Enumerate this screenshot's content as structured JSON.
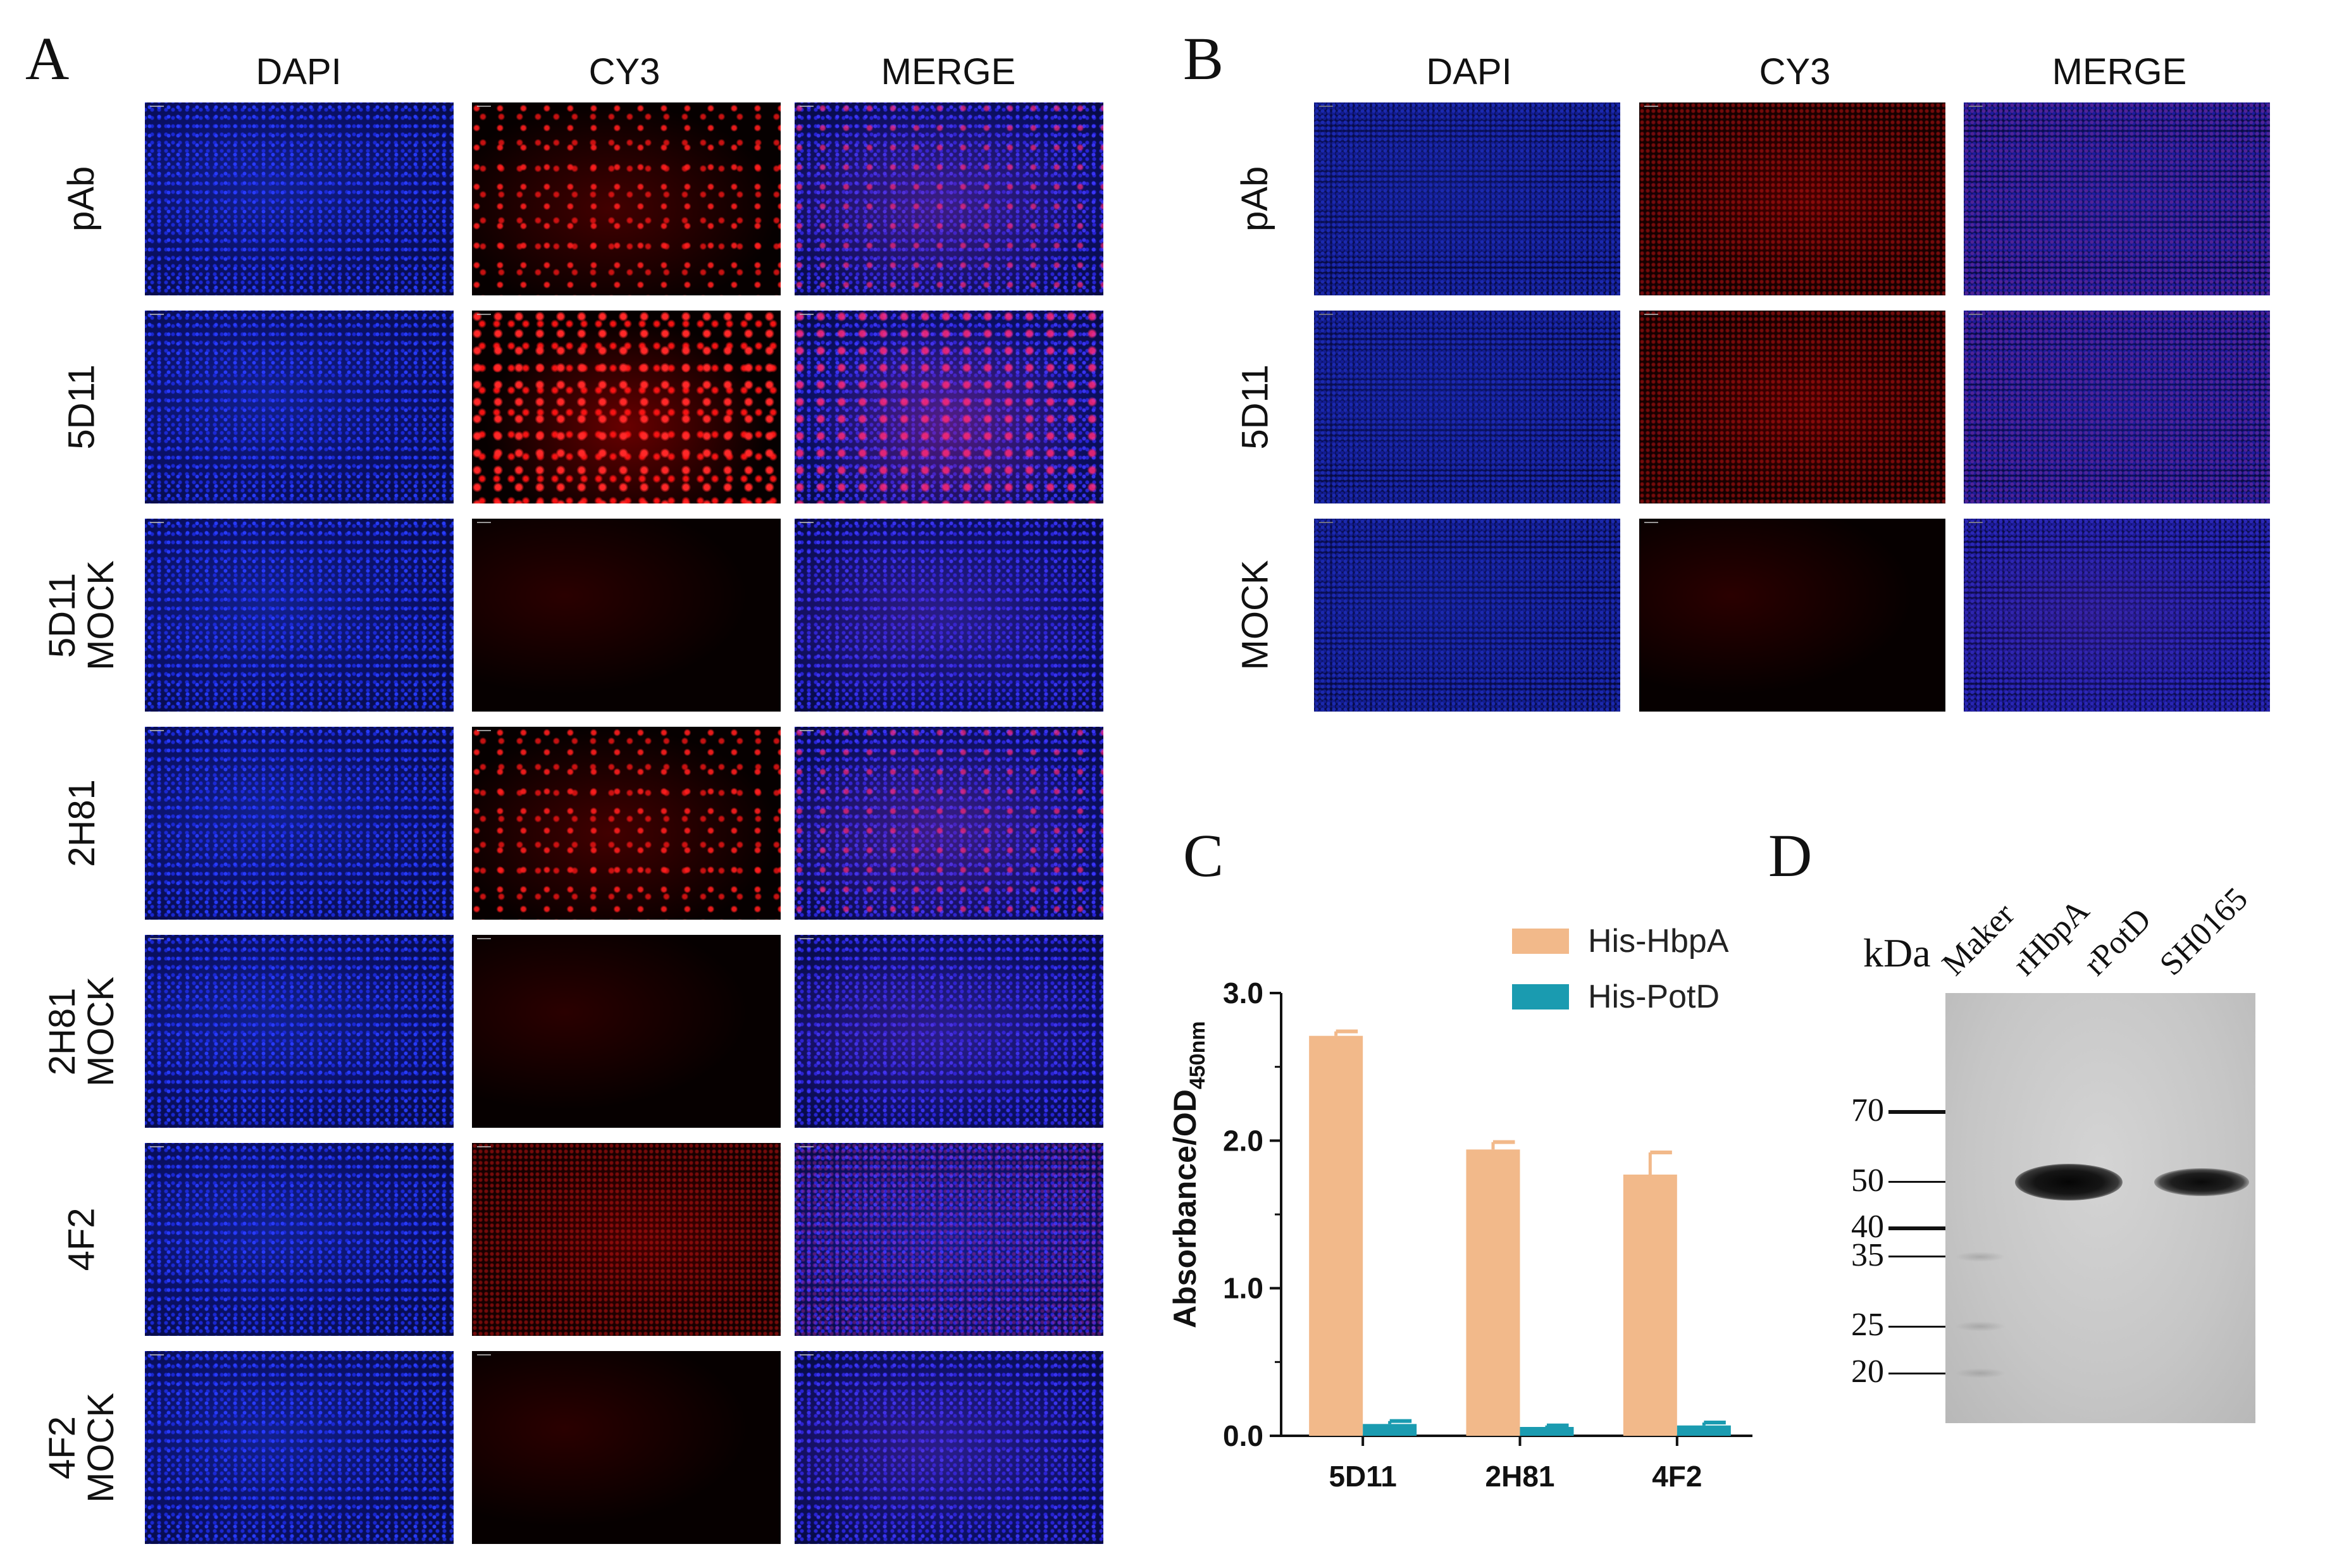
{
  "panels": {
    "A": {
      "letter": "A",
      "columns": [
        "DAPI",
        "CY3",
        "MERGE"
      ],
      "rows": [
        {
          "label": [
            "pAb"
          ],
          "cy3_level": "medium"
        },
        {
          "label": [
            "5D11"
          ],
          "cy3_level": "high"
        },
        {
          "label": [
            "5D11",
            "MOCK"
          ],
          "cy3_level": "low"
        },
        {
          "label": [
            "2H81"
          ],
          "cy3_level": "medium"
        },
        {
          "label": [
            "2H81",
            "MOCK"
          ],
          "cy3_level": "low"
        },
        {
          "label": [
            "4F2"
          ],
          "cy3_level": "haze"
        },
        {
          "label": [
            "4F2",
            "MOCK"
          ],
          "cy3_level": "low"
        }
      ]
    },
    "B": {
      "letter": "B",
      "columns": [
        "DAPI",
        "CY3",
        "MERGE"
      ],
      "rows": [
        {
          "label": [
            "pAb"
          ],
          "cy3_level": "haze"
        },
        {
          "label": [
            "5D11"
          ],
          "cy3_level": "haze"
        },
        {
          "label": [
            "MOCK"
          ],
          "cy3_level": "low"
        }
      ]
    },
    "C": {
      "letter": "C"
    },
    "D": {
      "letter": "D",
      "unit_label": "kDa",
      "lanes": [
        "Maker",
        "rHbpA",
        "rPotD",
        "SH0165"
      ],
      "markers": [
        "70",
        "50",
        "40",
        "35",
        "25",
        "20"
      ],
      "bands": [
        {
          "lane": "rHbpA",
          "kDa": 50,
          "intensity": "strong"
        },
        {
          "lane": "SH0165",
          "kDa": 50,
          "intensity": "medium"
        }
      ]
    }
  },
  "chart_data": {
    "type": "bar",
    "categories": [
      "5D11",
      "2H81",
      "4F2"
    ],
    "series": [
      {
        "name": "His-HbpA",
        "values": [
          2.71,
          1.94,
          1.77
        ],
        "errors": [
          0.03,
          0.05,
          0.15
        ],
        "color": "#f2b98a"
      },
      {
        "name": "His-PotD",
        "values": [
          0.08,
          0.06,
          0.07
        ],
        "errors": [
          0.02,
          0.01,
          0.02
        ],
        "color": "#1a9bb0"
      }
    ],
    "ylabel": "Absorbance/OD",
    "ylabel_subscript": "450nm",
    "ylim": [
      0,
      3
    ],
    "yticks": [
      "0.0",
      "1.0",
      "2.0",
      "3.0"
    ],
    "legend_position": "top-right",
    "grid": false
  }
}
